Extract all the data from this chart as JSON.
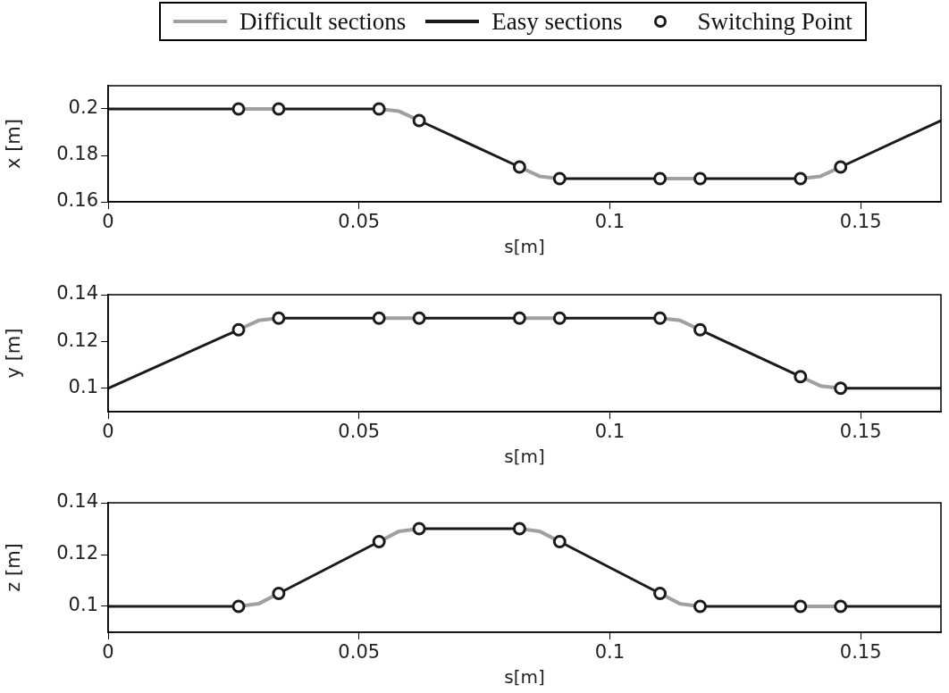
{
  "chart_data": [
    {
      "type": "line",
      "ylabel": "x [m]",
      "xlabel": "s[m]",
      "legend": "top",
      "xlim": [
        0,
        0.166
      ],
      "ylim": [
        0.16,
        0.21
      ],
      "xticks": [
        0,
        0.05,
        0.1,
        0.15
      ],
      "yticks": [
        0.16,
        0.18,
        0.2
      ],
      "series": [
        {
          "name": "Difficult sections",
          "type": "line",
          "color": "#a0a0a0",
          "x": [
            0.026,
            0.034,
            0.044,
            0.054,
            0.058,
            0.062,
            0.072,
            0.082,
            0.086,
            0.09,
            0.1,
            0.11,
            0.118,
            0.128,
            0.138,
            0.142,
            0.146
          ],
          "values": [
            0.2,
            0.2,
            null,
            0.2,
            0.199,
            0.195,
            null,
            0.175,
            0.171,
            0.17,
            null,
            0.17,
            0.17,
            null,
            0.17,
            0.171,
            0.175
          ]
        },
        {
          "name": "Easy sections",
          "type": "line",
          "color": "#1a1a1a",
          "x": [
            0,
            0.026,
            0.03,
            0.034,
            0.054,
            0.058,
            0.062,
            0.082,
            0.086,
            0.09,
            0.11,
            0.114,
            0.118,
            0.138,
            0.142,
            0.146,
            0.166
          ],
          "values": [
            0.2,
            0.2,
            null,
            0.2,
            0.2,
            null,
            0.195,
            0.175,
            null,
            0.17,
            0.17,
            null,
            0.17,
            0.17,
            null,
            0.175,
            0.195
          ]
        },
        {
          "name": "Switching Point",
          "type": "scatter",
          "marker": "circle",
          "color": "#1a1a1a",
          "x": [
            0.026,
            0.034,
            0.054,
            0.062,
            0.082,
            0.09,
            0.11,
            0.118,
            0.138,
            0.146
          ],
          "values": [
            0.2,
            0.2,
            0.2,
            0.195,
            0.175,
            0.17,
            0.17,
            0.17,
            0.17,
            0.175
          ]
        }
      ]
    },
    {
      "type": "line",
      "ylabel": "y [m]",
      "xlabel": "s[m]",
      "xlim": [
        0,
        0.166
      ],
      "ylim": [
        0.09,
        0.14
      ],
      "xticks": [
        0,
        0.05,
        0.1,
        0.15
      ],
      "yticks": [
        0.1,
        0.12,
        0.14
      ],
      "series": [
        {
          "type": "line",
          "color": "#a0a0a0",
          "x": [
            0.026,
            0.03,
            0.034,
            0.044,
            0.054,
            0.062,
            0.072,
            0.082,
            0.09,
            0.1,
            0.11,
            0.114,
            0.118,
            0.128,
            0.138,
            0.142,
            0.146
          ],
          "values": [
            0.125,
            0.129,
            0.13,
            null,
            0.13,
            0.13,
            null,
            0.13,
            0.13,
            null,
            0.13,
            0.129,
            0.125,
            null,
            0.105,
            0.101,
            0.1
          ]
        },
        {
          "type": "line",
          "color": "#1a1a1a",
          "x": [
            0,
            0.026,
            0.03,
            0.034,
            0.054,
            0.058,
            0.062,
            0.082,
            0.086,
            0.09,
            0.11,
            0.114,
            0.118,
            0.138,
            0.142,
            0.146,
            0.166
          ],
          "values": [
            0.1,
            0.125,
            null,
            0.13,
            0.13,
            null,
            0.13,
            0.13,
            null,
            0.13,
            0.13,
            null,
            0.125,
            0.105,
            null,
            0.1,
            0.1
          ]
        },
        {
          "type": "scatter",
          "marker": "circle",
          "color": "#1a1a1a",
          "x": [
            0.026,
            0.034,
            0.054,
            0.062,
            0.082,
            0.09,
            0.11,
            0.118,
            0.138,
            0.146
          ],
          "values": [
            0.125,
            0.13,
            0.13,
            0.13,
            0.13,
            0.13,
            0.13,
            0.125,
            0.105,
            0.1
          ]
        }
      ]
    },
    {
      "type": "line",
      "ylabel": "z [m]",
      "xlabel": "s[m]",
      "xlim": [
        0,
        0.166
      ],
      "ylim": [
        0.09,
        0.14
      ],
      "xticks": [
        0,
        0.05,
        0.1,
        0.15
      ],
      "yticks": [
        0.1,
        0.12,
        0.14
      ],
      "series": [
        {
          "type": "line",
          "color": "#a0a0a0",
          "x": [
            0.026,
            0.03,
            0.034,
            0.044,
            0.054,
            0.058,
            0.062,
            0.072,
            0.082,
            0.086,
            0.09,
            0.1,
            0.11,
            0.114,
            0.118,
            0.128,
            0.138,
            0.146
          ],
          "values": [
            0.1,
            0.101,
            0.105,
            null,
            0.125,
            0.129,
            0.13,
            null,
            0.13,
            0.129,
            0.125,
            null,
            0.105,
            0.101,
            0.1,
            null,
            0.1,
            0.1
          ]
        },
        {
          "type": "line",
          "color": "#1a1a1a",
          "x": [
            0,
            0.026,
            0.03,
            0.034,
            0.054,
            0.058,
            0.062,
            0.082,
            0.086,
            0.09,
            0.11,
            0.114,
            0.118,
            0.138,
            0.142,
            0.146,
            0.166
          ],
          "values": [
            0.1,
            0.1,
            null,
            0.105,
            0.125,
            null,
            0.13,
            0.13,
            null,
            0.125,
            0.105,
            null,
            0.1,
            0.1,
            null,
            0.1,
            0.1
          ]
        },
        {
          "type": "scatter",
          "marker": "circle",
          "color": "#1a1a1a",
          "x": [
            0.026,
            0.034,
            0.054,
            0.062,
            0.082,
            0.09,
            0.11,
            0.118,
            0.138,
            0.146
          ],
          "values": [
            0.1,
            0.105,
            0.125,
            0.13,
            0.13,
            0.125,
            0.105,
            0.1,
            0.1,
            0.1
          ]
        }
      ]
    }
  ]
}
